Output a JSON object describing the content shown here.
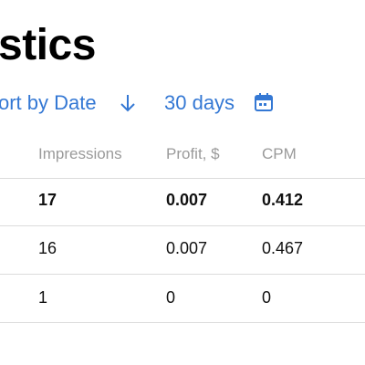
{
  "header": {
    "title": "stics",
    "sort": "ort by Date",
    "period": "30 days"
  },
  "table": {
    "columns": [
      "Impressions",
      "Profit, $",
      "CPM"
    ],
    "rows": [
      [
        "17",
        "0.007",
        "0.412"
      ],
      [
        "16",
        "0.007",
        "0.467"
      ],
      [
        "1",
        "0",
        "0"
      ]
    ]
  }
}
